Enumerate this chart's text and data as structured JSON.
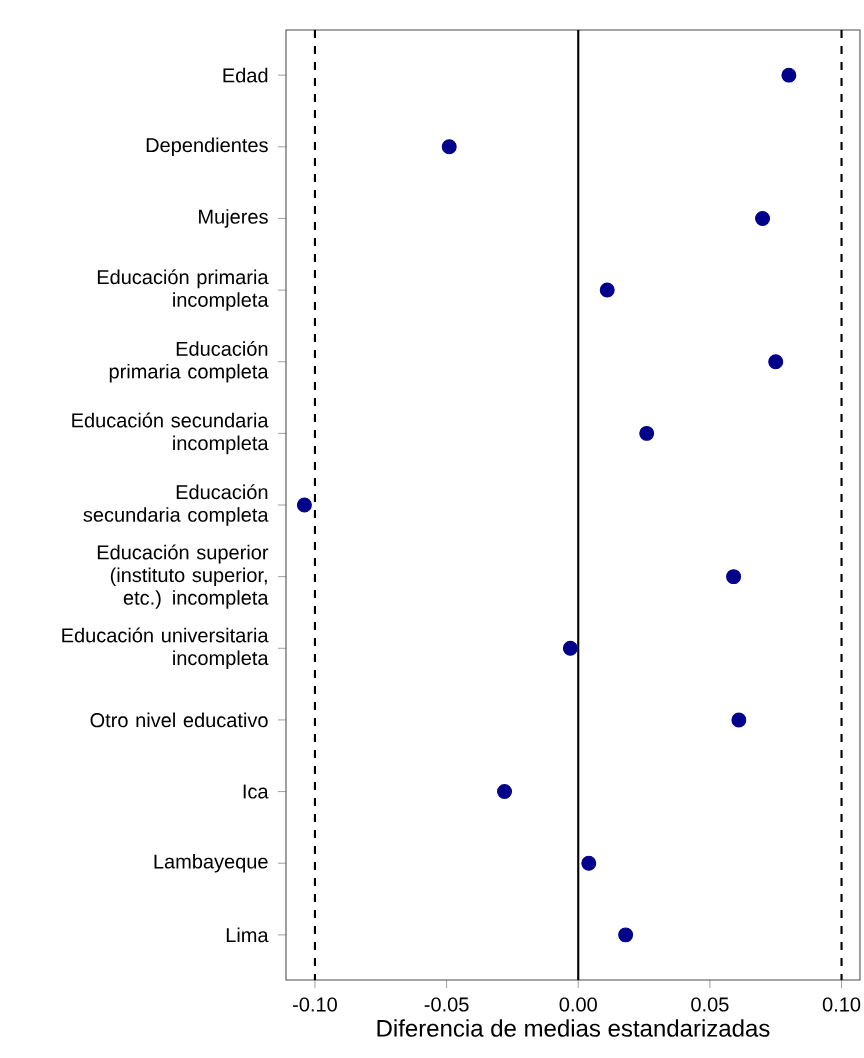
{
  "chart_data": {
    "type": "scatter",
    "orientation": "horizontal",
    "xlabel": "Diferencia de medias estandarizadas",
    "categories": [
      "Edad",
      "Dependientes",
      "Mujeres",
      "Educación primaria incompleta",
      "Educación primaria completa",
      "Educación secundaria incompleta",
      "Educación secundaria completa",
      "Educación superior (instituto superior, etc.) incompleta",
      "Educación universitaria incompleta",
      "Otro nivel educativo",
      "Ica",
      "Lambayeque",
      "Lima"
    ],
    "values": [
      0.08,
      -0.049,
      0.07,
      0.011,
      0.075,
      0.026,
      -0.104,
      0.059,
      -0.003,
      0.061,
      -0.028,
      0.004,
      0.018
    ],
    "color": "#00008b",
    "marker": "circle",
    "grid": false,
    "xlim": [
      -0.111,
      0.107
    ],
    "xticks": [
      {
        "value": -0.1,
        "label": "-0.10"
      },
      {
        "value": -0.05,
        "label": "-0.05"
      },
      {
        "value": 0,
        "label": "0.00"
      },
      {
        "value": 0.05,
        "label": "0.05"
      },
      {
        "value": 0.1,
        "label": "0.10"
      }
    ],
    "ref_lines": [
      {
        "axis": "x",
        "value": -0.1,
        "line_style": "dashed",
        "color": "#000000"
      },
      {
        "axis": "x",
        "value": 0,
        "line_style": "solid",
        "color": "#000000"
      },
      {
        "axis": "x",
        "value": 0.1,
        "line_style": "dashed",
        "color": "#000000"
      }
    ]
  }
}
